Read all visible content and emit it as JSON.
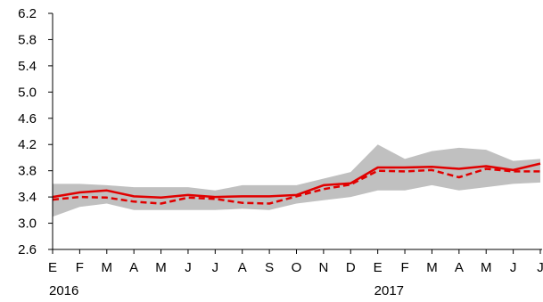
{
  "chart_data": {
    "type": "line",
    "title": "",
    "xlabel": "",
    "ylabel": "",
    "categories": [
      "E",
      "F",
      "M",
      "A",
      "M",
      "J",
      "J",
      "A",
      "S",
      "O",
      "N",
      "D",
      "E",
      "F",
      "M",
      "A",
      "M",
      "J",
      "J"
    ],
    "year_labels": [
      {
        "label": "2016",
        "category_index": 0
      },
      {
        "label": "2017",
        "category_index": 12
      }
    ],
    "ylim": [
      2.6,
      6.2
    ],
    "yticks": [
      "2.6",
      "3.0",
      "3.4",
      "3.8",
      "4.2",
      "4.6",
      "5.0",
      "5.4",
      "5.8",
      "6.2"
    ],
    "grid": false,
    "legend": "none",
    "band": {
      "color": "#c0c0c0",
      "low": [
        3.1,
        3.25,
        3.3,
        3.2,
        3.2,
        3.2,
        3.2,
        3.22,
        3.2,
        3.3,
        3.35,
        3.4,
        3.5,
        3.5,
        3.58,
        3.5,
        3.55,
        3.6,
        3.62
      ],
      "high": [
        3.6,
        3.6,
        3.58,
        3.55,
        3.55,
        3.55,
        3.5,
        3.58,
        3.58,
        3.58,
        3.68,
        3.78,
        4.2,
        3.98,
        4.1,
        4.15,
        4.12,
        3.95,
        3.98
      ]
    },
    "series": [
      {
        "style": "solid",
        "color": "#e00000",
        "values": [
          3.4,
          3.47,
          3.5,
          3.41,
          3.39,
          3.43,
          3.4,
          3.41,
          3.41,
          3.43,
          3.58,
          3.61,
          3.85,
          3.85,
          3.86,
          3.83,
          3.87,
          3.81,
          3.91
        ]
      },
      {
        "style": "dashed",
        "color": "#e00000",
        "values": [
          3.36,
          3.4,
          3.39,
          3.33,
          3.3,
          3.39,
          3.37,
          3.31,
          3.3,
          3.41,
          3.52,
          3.59,
          3.8,
          3.79,
          3.81,
          3.7,
          3.83,
          3.79,
          3.79
        ]
      }
    ]
  }
}
